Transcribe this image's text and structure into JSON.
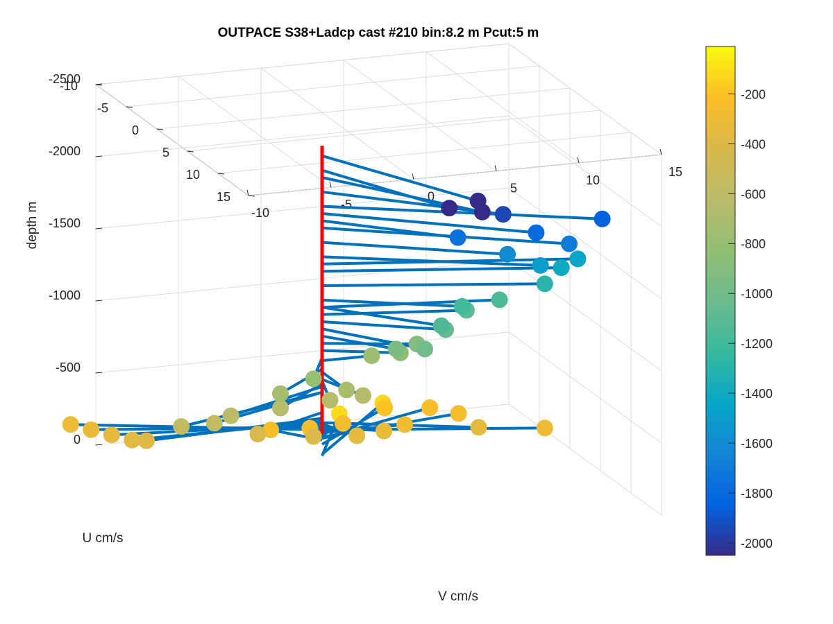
{
  "chart_data": {
    "type": "scatter",
    "title": "OUTPACE S38+Ladcp cast #210 bin:8.2 m  Pcut:5 m",
    "xlabel": "V cm/s",
    "ylabel": "U cm/s",
    "zlabel": "depth m",
    "xlim": [
      -10,
      15
    ],
    "ylim": [
      -10,
      15
    ],
    "zlim": [
      -2500,
      0
    ],
    "x_ticks": [
      "-10",
      "-5",
      "0",
      "5",
      "10",
      "15"
    ],
    "y_ticks": [
      "-10",
      "-5",
      "0",
      "5",
      "10",
      "15"
    ],
    "z_ticks": [
      "0",
      "-500",
      "-1000",
      "-1500",
      "-2000",
      "-2500"
    ],
    "colorbar": {
      "ticks": [
        "-200",
        "-400",
        "-600",
        "-800",
        "-1000",
        "-1200",
        "-1400",
        "-1600",
        "-1800",
        "-2000"
      ],
      "range": [
        -2050,
        -10
      ],
      "colormap": "parula"
    },
    "grid": true,
    "reference_line": {
      "color": "#ff0000",
      "depth_range": [
        -270,
        -2270
      ]
    },
    "series": [
      {
        "color": "#0072bd",
        "points": [
          {
            "v": -13,
            "u": -6,
            "depth": -300
          },
          {
            "v": -12.5,
            "u": -4,
            "depth": -320
          },
          {
            "v": -12,
            "u": -2,
            "depth": -340
          },
          {
            "v": -11.5,
            "u": 0,
            "depth": -360
          },
          {
            "v": -11,
            "u": 1,
            "depth": -380
          },
          {
            "v": -2,
            "u": -3,
            "depth": -230
          },
          {
            "v": 0,
            "u": -2,
            "depth": -250
          },
          {
            "v": 2,
            "u": -2,
            "depth": -260
          },
          {
            "v": 4,
            "u": -8,
            "depth": -120
          },
          {
            "v": 6,
            "u": -6,
            "depth": -200
          },
          {
            "v": 8,
            "u": -4,
            "depth": -240
          },
          {
            "v": 9,
            "u": -2,
            "depth": -250
          },
          {
            "v": 7,
            "u": -9,
            "depth": -130
          },
          {
            "v": 5,
            "u": 0,
            "depth": -280
          },
          {
            "v": 3,
            "u": 2,
            "depth": -320
          },
          {
            "v": 1,
            "u": 3,
            "depth": -340
          },
          {
            "v": 8,
            "u": 4,
            "depth": -350
          },
          {
            "v": 12,
            "u": 4,
            "depth": -300
          },
          {
            "v": -2,
            "u": 4,
            "depth": -400
          },
          {
            "v": -5,
            "u": 3,
            "depth": -420
          },
          {
            "v": -8,
            "u": 4,
            "depth": -560
          },
          {
            "v": -10,
            "u": 4,
            "depth": -560
          },
          {
            "v": -7,
            "u": 4,
            "depth": -600
          },
          {
            "v": -4,
            "u": 4,
            "depth": -620
          },
          {
            "v": -1,
            "u": 4,
            "depth": -640
          },
          {
            "v": 1,
            "u": 4,
            "depth": -650
          },
          {
            "v": 0,
            "u": 4,
            "depth": -700
          },
          {
            "v": -4,
            "u": 4,
            "depth": -720
          },
          {
            "v": -2,
            "u": 4,
            "depth": -800
          },
          {
            "v": 3,
            "u": 0,
            "depth": -780
          },
          {
            "v": 4,
            "u": 2,
            "depth": -850
          },
          {
            "v": 5,
            "u": 2,
            "depth": -900
          },
          {
            "v": 3,
            "u": 4,
            "depth": -950
          },
          {
            "v": 4,
            "u": 6,
            "depth": -1000
          },
          {
            "v": 6,
            "u": 4,
            "depth": -1050
          },
          {
            "v": 8,
            "u": 2,
            "depth": -1100
          },
          {
            "v": 5,
            "u": 6,
            "depth": -1150
          },
          {
            "v": 7,
            "u": 4,
            "depth": -1200
          },
          {
            "v": 10,
            "u": 2,
            "depth": -1150
          },
          {
            "v": 12,
            "u": 4,
            "depth": -1300
          },
          {
            "v": 13,
            "u": 4,
            "depth": -1400
          },
          {
            "v": 14,
            "u": 4,
            "depth": -1450
          },
          {
            "v": 11,
            "u": 6,
            "depth": -1500
          },
          {
            "v": 9,
            "u": 6,
            "depth": -1600
          },
          {
            "v": 12,
            "u": 8,
            "depth": -1700
          },
          {
            "v": 14,
            "u": 8,
            "depth": -1850
          },
          {
            "v": 10,
            "u": 8,
            "depth": -1800
          },
          {
            "v": 6,
            "u": 6,
            "depth": -1750
          },
          {
            "v": 8,
            "u": 8,
            "depth": -1950
          },
          {
            "v": 6,
            "u": 10,
            "depth": -2050
          },
          {
            "v": 4,
            "u": 10,
            "depth": -2100
          },
          {
            "v": 5,
            "u": 12,
            "depth": -2200
          }
        ]
      }
    ]
  }
}
